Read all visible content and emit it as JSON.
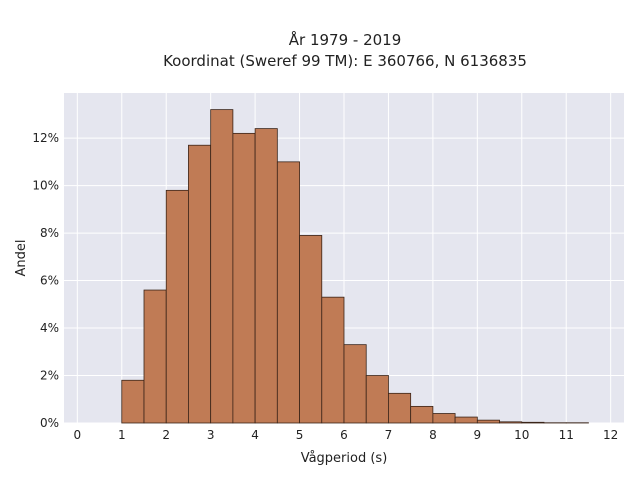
{
  "chart_data": {
    "type": "bar",
    "title_lines": [
      "År 1979 - 2019",
      "Koordinat (Sweref 99 TM): E 360766, N 6136835"
    ],
    "xlabel": "Vågperiod (s)",
    "ylabel": "Andel",
    "bin_edges": [
      0,
      0.5,
      1,
      1.5,
      2,
      2.5,
      3,
      3.5,
      4,
      4.5,
      5,
      5.5,
      6,
      6.5,
      7,
      7.5,
      8,
      8.5,
      9,
      9.5,
      10,
      10.5,
      11,
      11.5,
      12
    ],
    "values": [
      0.0,
      0.0,
      1.8,
      5.6,
      9.8,
      11.7,
      13.2,
      12.2,
      12.4,
      11.0,
      7.9,
      5.3,
      3.3,
      2.0,
      1.25,
      0.7,
      0.4,
      0.25,
      0.12,
      0.05,
      0.03,
      0.01,
      0.01,
      0.0
    ],
    "xlim": [
      -0.3,
      12.3
    ],
    "ylim": [
      0,
      13.9
    ],
    "xticks": [
      0,
      1,
      2,
      3,
      4,
      5,
      6,
      7,
      8,
      9,
      10,
      11,
      12
    ],
    "xtick_labels": [
      "0",
      "1",
      "2",
      "3",
      "4",
      "5",
      "6",
      "7",
      "8",
      "9",
      "10",
      "11",
      "12"
    ],
    "yticks": [
      0,
      2,
      4,
      6,
      8,
      10,
      12
    ],
    "ytick_labels": [
      "0%",
      "2%",
      "4%",
      "6%",
      "8%",
      "10%",
      "12%"
    ],
    "grid": true,
    "colors": {
      "bar_fill": "#c07b55",
      "bar_edge": "#3a2418",
      "plot_bg": "#e5e6ef",
      "grid": "#ffffff"
    }
  }
}
